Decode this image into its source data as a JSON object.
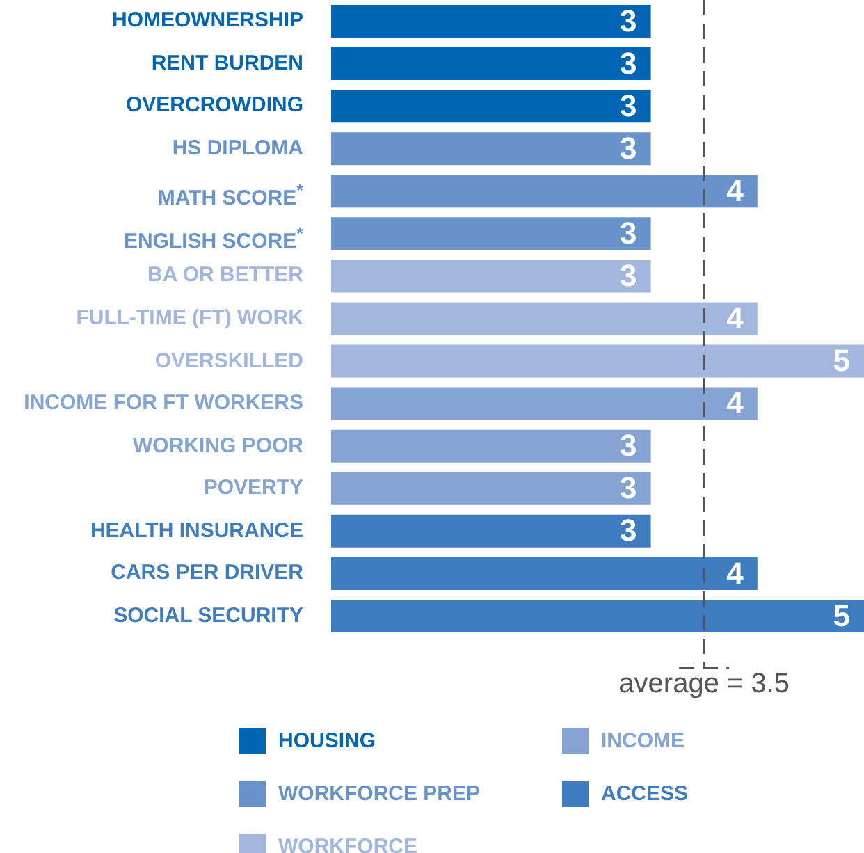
{
  "chart_data": {
    "type": "bar",
    "orientation": "horizontal",
    "categories": [
      "HOMEOWNERSHIP",
      "RENT BURDEN",
      "OVERCROWDING",
      "HS DIPLOMA",
      "MATH SCORE$^{*}$",
      "ENGLISH SCORE$^{*}$",
      "BA OR BETTER",
      "FULL-TIME (FT) WORK",
      "OVERSKILLED",
      "INCOME FOR FT WORKERS",
      "WORKING POOR",
      "POVERTY",
      "HEALTH INSURANCE",
      "CARS PER DRIVER",
      "SOCIAL SECURITY"
    ],
    "series": [
      {
        "name": "HOUSING",
        "color": "#0066b3",
        "values": [
          3,
          3,
          3,
          null,
          null,
          null,
          null,
          null,
          null,
          null,
          null,
          null,
          null,
          null,
          null
        ]
      },
      {
        "name": "WORKFORCE PREP",
        "color": "#6893cb",
        "values": [
          null,
          null,
          null,
          3,
          4,
          3,
          null,
          null,
          null,
          null,
          null,
          null,
          null,
          null,
          null
        ]
      },
      {
        "name": "WORKFORCE",
        "color": "#a3b6de",
        "values": [
          null,
          null,
          null,
          null,
          null,
          null,
          3,
          4,
          5,
          null,
          null,
          null,
          null,
          null,
          null
        ]
      },
      {
        "name": "INCOME",
        "color": "#85a3d3",
        "values": [
          null,
          null,
          null,
          null,
          null,
          null,
          null,
          null,
          null,
          4,
          3,
          3,
          null,
          null,
          null
        ]
      },
      {
        "name": "ACCESS",
        "color": "#3f7cc0",
        "values": [
          null,
          null,
          null,
          null,
          null,
          null,
          null,
          null,
          null,
          null,
          null,
          null,
          3,
          4,
          5
        ]
      }
    ],
    "xlim": [
      0,
      5
    ],
    "tick_labels": "y",
    "legend": "bottom",
    "data_labels": true,
    "ref_lines": [
      {
        "axis": "x",
        "value": 3.5,
        "label": "average = 3.5",
        "color": "#555555",
        "line_style": "dashed"
      }
    ]
  }
}
